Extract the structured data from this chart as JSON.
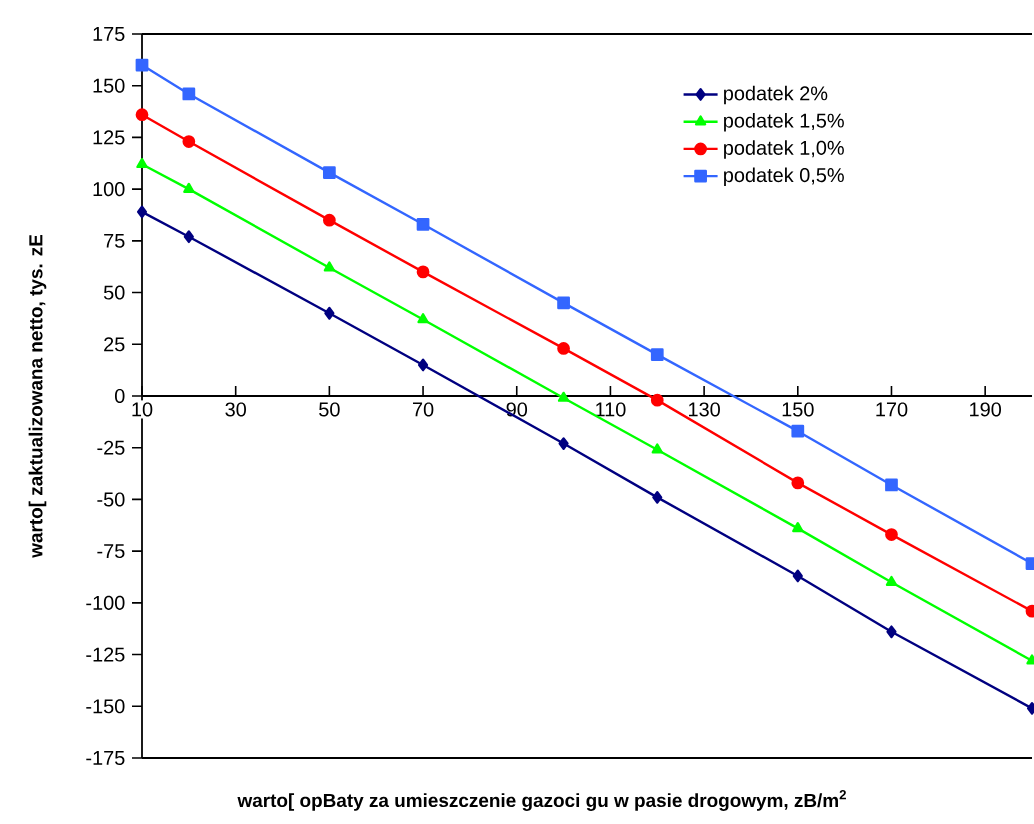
{
  "chart_data": {
    "type": "line",
    "xlabel": "warto[   opBaty za umieszczenie gazoci gu w pasie drogowym, zB/m$^{2}$",
    "ylabel": "warto[   zaktualizowana netto, tys. zE",
    "x": [
      10,
      20,
      50,
      70,
      100,
      120,
      150,
      170,
      200
    ],
    "series": [
      {
        "name": "podatek 2%",
        "color": "#000080",
        "marker": "diamond",
        "values": [
          89,
          77,
          40,
          15,
          -23,
          -49,
          -87,
          -114,
          -151
        ]
      },
      {
        "name": "podatek 1,5%",
        "color": "#00ff00",
        "marker": "triangle",
        "values": [
          112,
          100,
          62,
          37,
          -1,
          -26,
          -64,
          -90,
          -128
        ]
      },
      {
        "name": "podatek 1,0%",
        "color": "#ff0000",
        "marker": "circle",
        "values": [
          136,
          123,
          85,
          60,
          23,
          -2,
          -42,
          -67,
          -104
        ]
      },
      {
        "name": "podatek 0,5%",
        "color": "#3366ff",
        "marker": "square",
        "values": [
          160,
          146,
          108,
          83,
          45,
          20,
          -17,
          -43,
          -81
        ]
      }
    ],
    "xlim": [
      10,
      200
    ],
    "xticks": [
      10,
      30,
      50,
      70,
      90,
      110,
      130,
      150,
      170,
      190
    ],
    "ylim": [
      -175,
      175
    ],
    "yticks": [
      -175,
      -150,
      -125,
      -100,
      -75,
      -50,
      -25,
      0,
      25,
      50,
      75,
      100,
      125,
      150,
      175
    ],
    "legend": "top right",
    "grid": false,
    "line_style": "solid"
  }
}
